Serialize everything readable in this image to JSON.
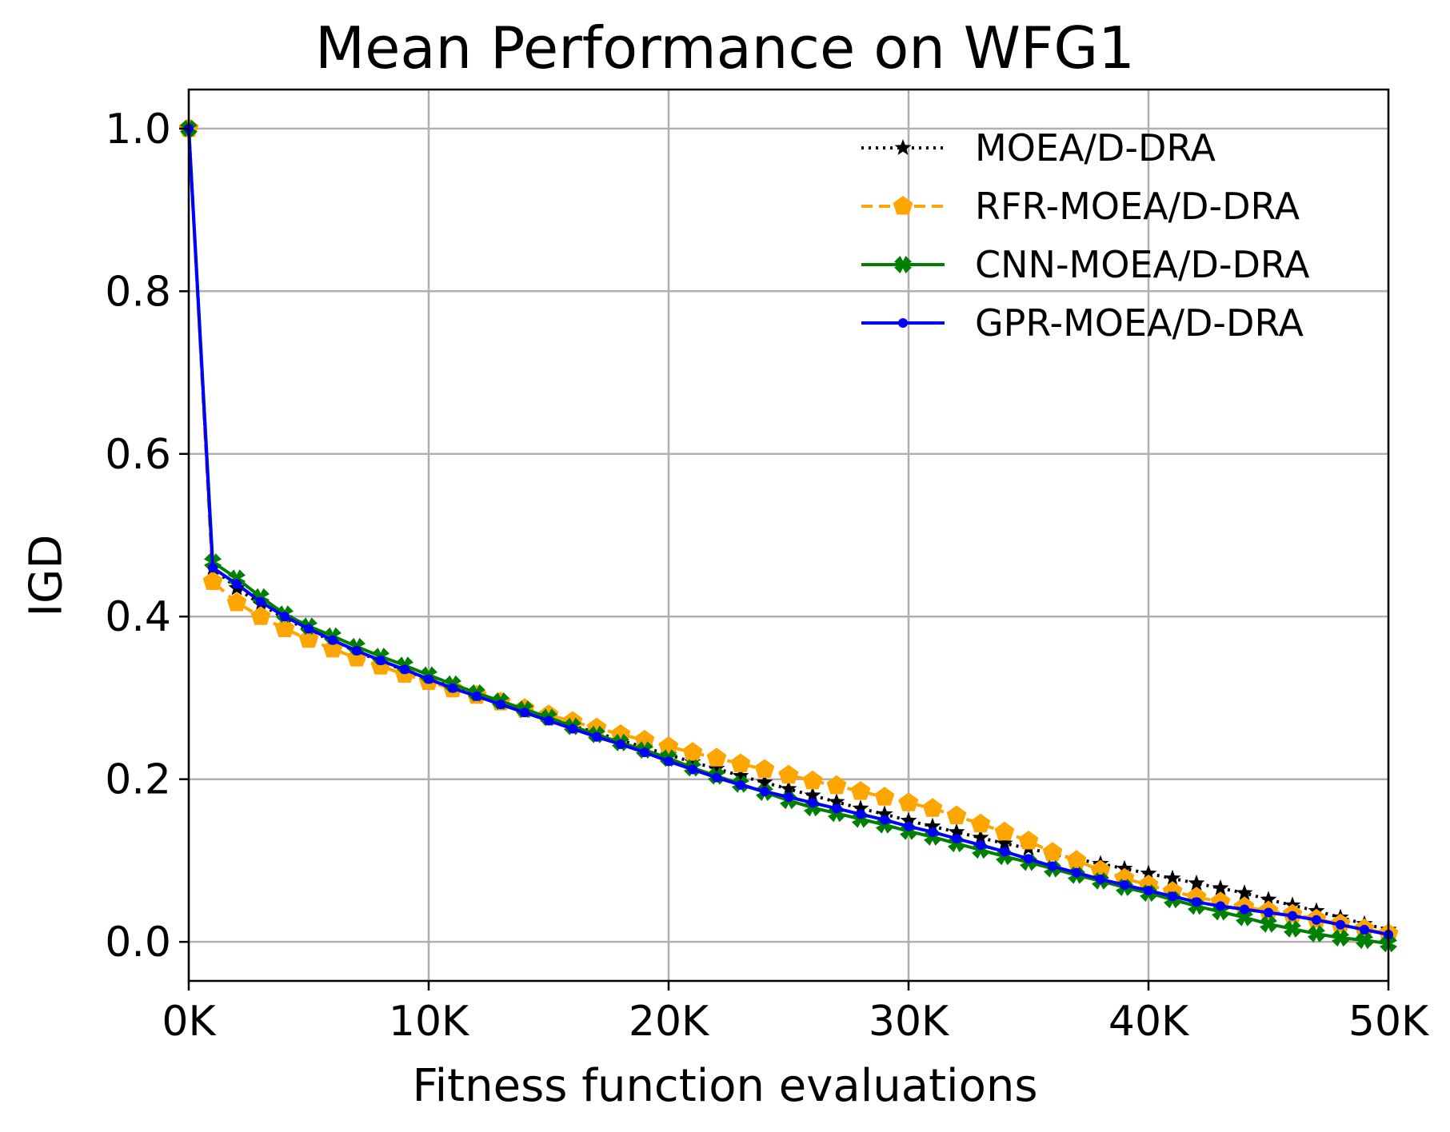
{
  "chart_data": {
    "type": "line",
    "title": "Mean Performance on WFG1",
    "xlabel": "Fitness function evaluations",
    "ylabel": "IGD",
    "xlim": [
      0,
      50000
    ],
    "ylim": [
      -0.048,
      1.048
    ],
    "xticks": [
      0,
      10000,
      20000,
      30000,
      40000,
      50000
    ],
    "xtick_labels": [
      "0K",
      "10K",
      "20K",
      "30K",
      "40K",
      "50K"
    ],
    "yticks": [
      0.0,
      0.2,
      0.4,
      0.6,
      0.8,
      1.0
    ],
    "ytick_labels": [
      "0.0",
      "0.2",
      "0.4",
      "0.6",
      "0.8",
      "1.0"
    ],
    "grid": true,
    "legend_position": "top-right",
    "x": [
      0,
      1000,
      2000,
      3000,
      4000,
      5000,
      6000,
      7000,
      8000,
      9000,
      10000,
      11000,
      12000,
      13000,
      14000,
      15000,
      16000,
      17000,
      18000,
      19000,
      20000,
      21000,
      22000,
      23000,
      24000,
      25000,
      26000,
      27000,
      28000,
      29000,
      30000,
      31000,
      32000,
      33000,
      34000,
      35000,
      36000,
      37000,
      38000,
      39000,
      40000,
      41000,
      42000,
      43000,
      44000,
      45000,
      46000,
      47000,
      48000,
      49000,
      50000
    ],
    "series": [
      {
        "name": "MOEA/D-DRA",
        "color": "#000000",
        "linestyle": "dotted",
        "marker": "star",
        "values": [
          1.0,
          0.46,
          0.435,
          0.415,
          0.398,
          0.383,
          0.37,
          0.357,
          0.345,
          0.334,
          0.323,
          0.313,
          0.303,
          0.294,
          0.284,
          0.275,
          0.266,
          0.257,
          0.248,
          0.239,
          0.23,
          0.221,
          0.213,
          0.204,
          0.196,
          0.188,
          0.18,
          0.172,
          0.164,
          0.157,
          0.149,
          0.142,
          0.135,
          0.128,
          0.121,
          0.115,
          0.108,
          0.102,
          0.096,
          0.09,
          0.084,
          0.078,
          0.072,
          0.066,
          0.06,
          0.052,
          0.045,
          0.038,
          0.03,
          0.022,
          0.015
        ]
      },
      {
        "name": "RFR-MOEA/D-DRA",
        "color": "#FFA500",
        "linestyle": "dashed",
        "marker": "pentagon",
        "values": [
          1.0,
          0.443,
          0.417,
          0.4,
          0.385,
          0.372,
          0.36,
          0.349,
          0.339,
          0.329,
          0.32,
          0.311,
          0.303,
          0.295,
          0.287,
          0.279,
          0.271,
          0.263,
          0.255,
          0.248,
          0.24,
          0.233,
          0.226,
          0.219,
          0.212,
          0.205,
          0.198,
          0.192,
          0.185,
          0.178,
          0.171,
          0.164,
          0.155,
          0.145,
          0.135,
          0.124,
          0.11,
          0.1,
          0.088,
          0.078,
          0.07,
          0.062,
          0.055,
          0.049,
          0.043,
          0.038,
          0.034,
          0.028,
          0.022,
          0.016,
          0.01
        ]
      },
      {
        "name": "CNN-MOEA/D-DRA",
        "color": "#008000",
        "linestyle": "solid",
        "marker": "x-filled",
        "values": [
          1.0,
          0.467,
          0.447,
          0.424,
          0.403,
          0.388,
          0.376,
          0.363,
          0.351,
          0.34,
          0.328,
          0.317,
          0.306,
          0.296,
          0.286,
          0.276,
          0.265,
          0.255,
          0.245,
          0.236,
          0.226,
          0.214,
          0.204,
          0.194,
          0.184,
          0.174,
          0.165,
          0.158,
          0.151,
          0.144,
          0.136,
          0.129,
          0.121,
          0.113,
          0.105,
          0.098,
          0.09,
          0.082,
          0.075,
          0.067,
          0.06,
          0.052,
          0.044,
          0.037,
          0.03,
          0.022,
          0.016,
          0.01,
          0.005,
          0.002,
          -0.002
        ]
      },
      {
        "name": "GPR-MOEA/D-DRA",
        "color": "#0000FF",
        "linestyle": "solid",
        "marker": "dot",
        "values": [
          1.0,
          0.46,
          0.44,
          0.418,
          0.4,
          0.385,
          0.371,
          0.358,
          0.346,
          0.335,
          0.323,
          0.312,
          0.302,
          0.292,
          0.282,
          0.272,
          0.262,
          0.252,
          0.243,
          0.233,
          0.222,
          0.212,
          0.202,
          0.193,
          0.185,
          0.178,
          0.171,
          0.164,
          0.157,
          0.15,
          0.142,
          0.135,
          0.127,
          0.119,
          0.111,
          0.102,
          0.093,
          0.085,
          0.077,
          0.07,
          0.063,
          0.056,
          0.049,
          0.044,
          0.04,
          0.036,
          0.032,
          0.027,
          0.021,
          0.015,
          0.009
        ]
      }
    ]
  }
}
